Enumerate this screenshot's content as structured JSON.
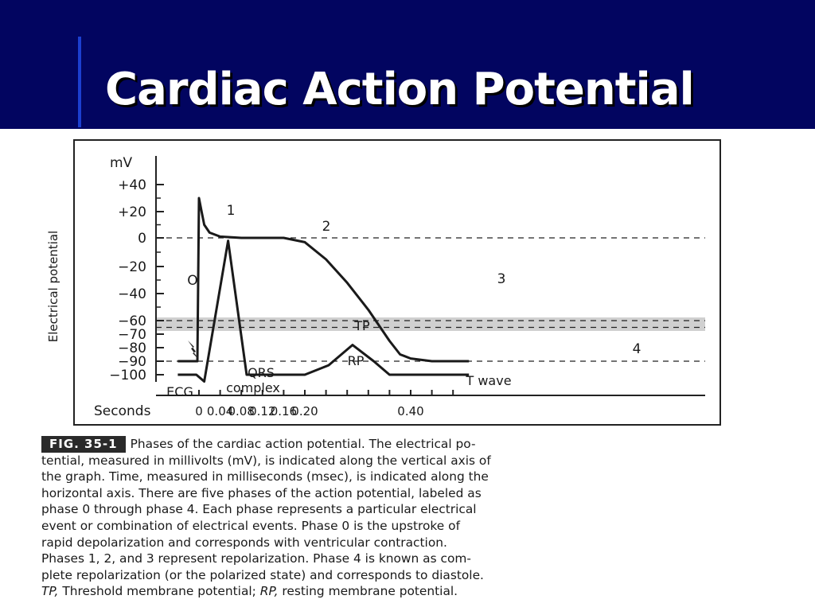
{
  "slide": {
    "title": "Cardiac Action Potential"
  },
  "chart_data": {
    "type": "line",
    "ylabel": "Electrical potential",
    "yunit": "mV",
    "xlabel": "Seconds",
    "y_ticks": [
      "+40",
      "+20",
      "0",
      "−20",
      "−40",
      "−60",
      "−70",
      "−80",
      "−90",
      "−100"
    ],
    "x_ticks": [
      "0",
      "0.04",
      "0.08",
      "0.12",
      "0.16",
      "0.20",
      "0.40"
    ],
    "phase_labels": [
      "O",
      "1",
      "2",
      "3",
      "4"
    ],
    "annotations": {
      "tp": "TP",
      "rp": "RP",
      "qrs": "QRS",
      "qrs_sub": "complex",
      "ecg": "ECG",
      "twave": "T wave"
    },
    "series": [
      {
        "name": "Action potential",
        "points": [
          [
            -0.04,
            -90
          ],
          [
            -0.003,
            -90
          ],
          [
            0.0,
            30
          ],
          [
            0.005,
            20
          ],
          [
            0.01,
            10
          ],
          [
            0.02,
            4
          ],
          [
            0.04,
            1
          ],
          [
            0.08,
            0
          ],
          [
            0.16,
            0
          ],
          [
            0.2,
            -3
          ],
          [
            0.24,
            -15
          ],
          [
            0.28,
            -32
          ],
          [
            0.32,
            -52
          ],
          [
            0.36,
            -75
          ],
          [
            0.38,
            -85
          ],
          [
            0.4,
            -88
          ],
          [
            0.44,
            -90
          ],
          [
            0.51,
            -90
          ]
        ]
      },
      {
        "name": "ECG",
        "points": [
          [
            -0.04,
            -100
          ],
          [
            -0.005,
            -100
          ],
          [
            0.01,
            -105
          ],
          [
            0.055,
            -2
          ],
          [
            0.09,
            -100
          ],
          [
            0.2,
            -100
          ],
          [
            0.245,
            -93
          ],
          [
            0.29,
            -78
          ],
          [
            0.33,
            -90
          ],
          [
            0.36,
            -100
          ],
          [
            0.51,
            -100
          ]
        ]
      }
    ],
    "reference_lines": [
      {
        "label": "0",
        "y": 0
      },
      {
        "label": "TP",
        "y": -65
      },
      {
        "label": "RP",
        "y": -90
      }
    ]
  },
  "caption": {
    "fig_label": "FIG. 35-1",
    "lines": [
      "Phases of the cardiac action potential. The electrical po-",
      "tential, measured in millivolts (mV), is indicated along the vertical axis of",
      "the graph. Time, measured in milliseconds (msec), is indicated along the",
      "horizontal axis. There are five phases of the action potential, labeled as",
      "phase 0 through phase 4. Each phase represents a particular electrical",
      "event or combination of electrical events. Phase 0 is the upstroke of",
      "rapid depolarization and corresponds with ventricular contraction.",
      "Phases 1, 2, and 3 represent repolarization. Phase 4 is known as com-",
      "plete repolarization (or the polarized state) and corresponds to diastole."
    ],
    "last_line": {
      "tp_abbr": "TP,",
      "tp_text": " Threshold membrane potential; ",
      "rp_abbr": "RP,",
      "rp_text": " resting membrane potential."
    }
  }
}
